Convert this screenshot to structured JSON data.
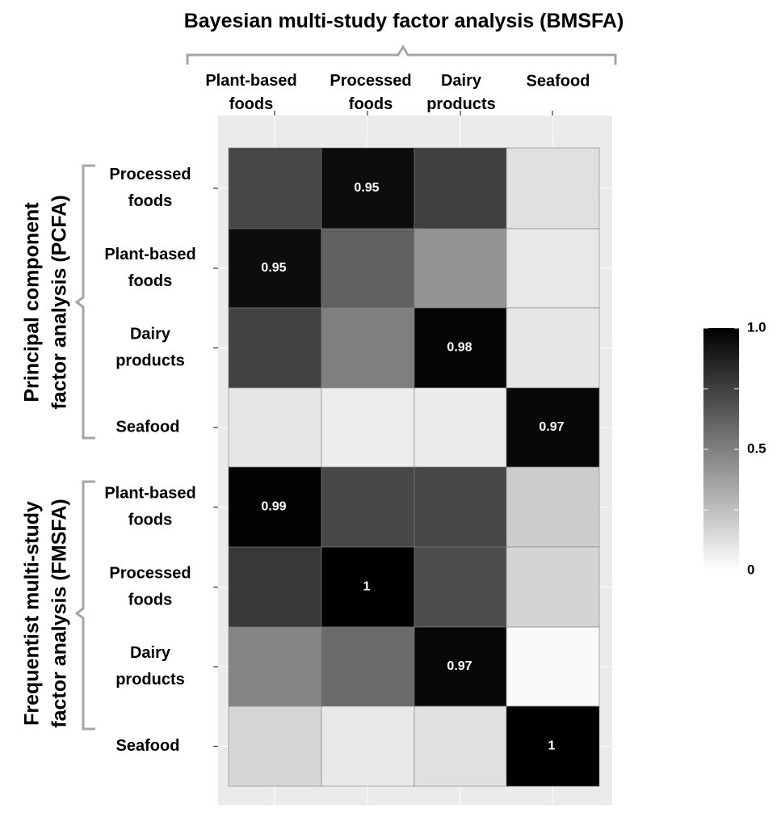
{
  "chart_data": {
    "type": "heatmap",
    "title": "Bayesian multi-study factor analysis (BMSFA)",
    "columns": [
      [
        "Plant-based",
        "foods"
      ],
      [
        "Processed",
        "foods"
      ],
      [
        "Dairy",
        "products"
      ],
      [
        "Seafood"
      ]
    ],
    "row_groups": [
      {
        "label": [
          "Principal component",
          "factor analysis  (PCFA)"
        ],
        "rows": [
          {
            "label": [
              "Processed",
              "foods"
            ],
            "values": [
              0.72,
              0.95,
              0.75,
              0.12
            ]
          },
          {
            "label": [
              "Plant-based",
              "foods"
            ],
            "values": [
              0.95,
              0.62,
              0.42,
              0.09
            ]
          },
          {
            "label": [
              "Dairy",
              "products"
            ],
            "values": [
              0.74,
              0.5,
              0.98,
              0.1
            ]
          },
          {
            "label": [
              "Seafood"
            ],
            "values": [
              0.1,
              0.07,
              0.08,
              0.97
            ]
          }
        ]
      },
      {
        "label": [
          "Frequentist multi-study",
          "factor analysis (FMSFA)"
        ],
        "rows": [
          {
            "label": [
              "Plant-based",
              "foods"
            ],
            "values": [
              0.99,
              0.72,
              0.72,
              0.2
            ]
          },
          {
            "label": [
              "Processed",
              "foods"
            ],
            "values": [
              0.78,
              1.0,
              0.7,
              0.17
            ]
          },
          {
            "label": [
              "Dairy",
              "products"
            ],
            "values": [
              0.48,
              0.58,
              0.97,
              0.02
            ]
          },
          {
            "label": [
              "Seafood"
            ],
            "values": [
              0.16,
              0.09,
              0.12,
              1.0
            ]
          }
        ]
      }
    ],
    "annotations": [
      {
        "group": 0,
        "row": 0,
        "col": 1,
        "text": "0.95"
      },
      {
        "group": 0,
        "row": 1,
        "col": 0,
        "text": "0.95"
      },
      {
        "group": 0,
        "row": 2,
        "col": 2,
        "text": "0.98"
      },
      {
        "group": 0,
        "row": 3,
        "col": 3,
        "text": "0.97"
      },
      {
        "group": 1,
        "row": 0,
        "col": 0,
        "text": "0.99"
      },
      {
        "group": 1,
        "row": 1,
        "col": 1,
        "text": "1"
      },
      {
        "group": 1,
        "row": 2,
        "col": 2,
        "text": "0.97"
      },
      {
        "group": 1,
        "row": 3,
        "col": 3,
        "text": "1"
      }
    ],
    "color_scale": {
      "low": "#ffffff",
      "high": "#000000",
      "range": [
        0,
        1
      ]
    },
    "legend": {
      "position": "right",
      "ticks": [
        {
          "value": 1.0,
          "label": "1.0"
        },
        {
          "value": 0.5,
          "label": "0.5"
        },
        {
          "value": 0,
          "label": "0"
        }
      ]
    },
    "colors": {
      "panel_background": "#ebebeb",
      "grid": "#ffffff",
      "bracket": "#a6a6a6",
      "text": "#111111"
    }
  }
}
